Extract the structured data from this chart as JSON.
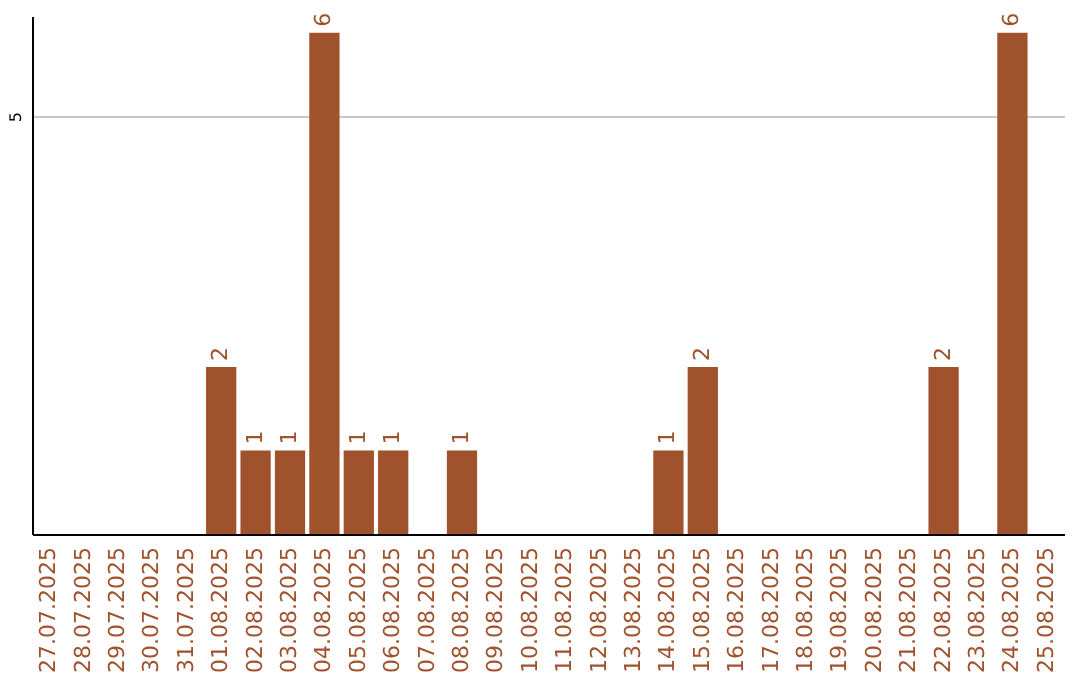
{
  "chart_data": {
    "type": "bar",
    "categories": [
      "27.07.2025",
      "28.07.2025",
      "29.07.2025",
      "30.07.2025",
      "31.07.2025",
      "01.08.2025",
      "02.08.2025",
      "03.08.2025",
      "04.08.2025",
      "05.08.2025",
      "06.08.2025",
      "07.08.2025",
      "08.08.2025",
      "09.08.2025",
      "10.08.2025",
      "11.08.2025",
      "12.08.2025",
      "13.08.2025",
      "14.08.2025",
      "15.08.2025",
      "16.08.2025",
      "17.08.2025",
      "18.08.2025",
      "19.08.2025",
      "20.08.2025",
      "21.08.2025",
      "22.08.2025",
      "23.08.2025",
      "24.08.2025",
      "25.08.2025"
    ],
    "values": [
      0,
      0,
      0,
      0,
      0,
      2,
      1,
      1,
      6,
      1,
      1,
      0,
      1,
      0,
      0,
      0,
      0,
      0,
      1,
      2,
      0,
      0,
      0,
      0,
      0,
      0,
      2,
      0,
      6,
      0
    ],
    "value_labels": [
      null,
      null,
      null,
      null,
      null,
      "2",
      "1",
      "1",
      "6",
      "1",
      "1",
      null,
      "1",
      null,
      null,
      null,
      null,
      null,
      "1",
      "2",
      null,
      null,
      null,
      null,
      null,
      null,
      "2",
      null,
      "6",
      null
    ],
    "color": "#a0522d",
    "ylim": [
      0,
      6.2
    ],
    "yticks": [
      5
    ],
    "grid": "y"
  }
}
